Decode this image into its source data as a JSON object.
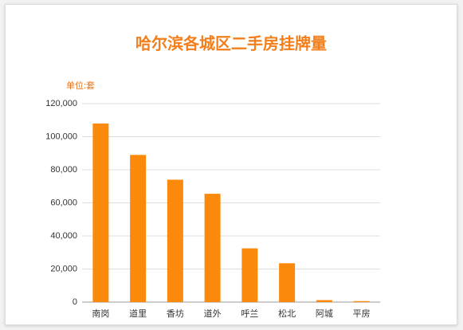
{
  "chart_data": {
    "type": "bar",
    "title": "哈尔滨各城区二手房挂牌量",
    "y_axis_label": "单位:套",
    "categories": [
      "南岗",
      "道里",
      "香坊",
      "道外",
      "呼兰",
      "松北",
      "阿城",
      "平房"
    ],
    "values": [
      108000,
      89000,
      74000,
      65500,
      32500,
      23500,
      1200,
      600
    ],
    "color": "#fb8a0c",
    "ylim": [
      0,
      120000
    ],
    "yticks": [
      0,
      {
        "value": 20000,
        "label": "20,000"
      },
      {
        "value": 40000,
        "label": "40,000"
      },
      {
        "value": 60000,
        "label": "60,000"
      },
      {
        "value": 80000,
        "label": "80,000"
      },
      {
        "value": 100000,
        "label": "100,000"
      },
      {
        "value": 120000,
        "label": "120,000"
      }
    ],
    "grid": true
  }
}
